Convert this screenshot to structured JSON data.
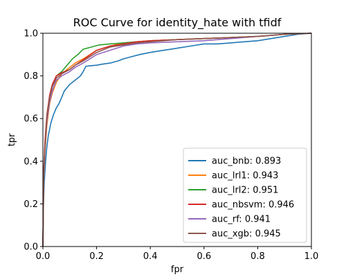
{
  "chart_data": {
    "type": "line",
    "title": "ROC Curve for identity_hate with tfidf",
    "xlabel": "fpr",
    "ylabel": "tpr",
    "xlim": [
      0,
      1
    ],
    "ylim": [
      0,
      1
    ],
    "xticks": [
      "0.0",
      "0.2",
      "0.4",
      "0.6",
      "0.8",
      "1.0"
    ],
    "yticks": [
      "0.0",
      "0.2",
      "0.4",
      "0.6",
      "0.8",
      "1.0"
    ],
    "grid": false,
    "legend_position": "lower-right",
    "series": [
      {
        "name": "auc_bnb: 0.893",
        "color": "#1f77b4",
        "x": [
          0,
          0.002,
          0.005,
          0.01,
          0.015,
          0.02,
          0.03,
          0.04,
          0.05,
          0.06,
          0.07,
          0.08,
          0.1,
          0.12,
          0.14,
          0.15,
          0.16,
          0.18,
          0.2,
          0.22,
          0.25,
          0.28,
          0.3,
          0.33,
          0.36,
          0.4,
          0.45,
          0.5,
          0.55,
          0.6,
          0.65,
          0.7,
          0.75,
          0.8,
          0.85,
          0.9,
          0.95,
          1.0
        ],
        "y": [
          0,
          0.19,
          0.3,
          0.4,
          0.47,
          0.52,
          0.58,
          0.62,
          0.65,
          0.67,
          0.7,
          0.73,
          0.76,
          0.78,
          0.8,
          0.82,
          0.845,
          0.848,
          0.85,
          0.855,
          0.86,
          0.87,
          0.88,
          0.89,
          0.9,
          0.91,
          0.92,
          0.93,
          0.94,
          0.95,
          0.95,
          0.955,
          0.96,
          0.965,
          0.975,
          0.985,
          0.995,
          1.0
        ]
      },
      {
        "name": "auc_lrl1: 0.943",
        "color": "#ff7f0e",
        "x": [
          0,
          0.003,
          0.008,
          0.015,
          0.025,
          0.035,
          0.05,
          0.07,
          0.1,
          0.12,
          0.15,
          0.2,
          0.25,
          0.3,
          0.35,
          0.4,
          0.5,
          0.6,
          0.7,
          0.8,
          0.9,
          1.0
        ],
        "y": [
          0,
          0.32,
          0.45,
          0.57,
          0.67,
          0.72,
          0.77,
          0.81,
          0.84,
          0.86,
          0.88,
          0.92,
          0.94,
          0.955,
          0.96,
          0.965,
          0.97,
          0.975,
          0.98,
          0.985,
          0.995,
          1.0
        ]
      },
      {
        "name": "auc_lrl2: 0.951",
        "color": "#2ca02c",
        "x": [
          0,
          0.003,
          0.008,
          0.015,
          0.025,
          0.035,
          0.05,
          0.07,
          0.09,
          0.11,
          0.13,
          0.15,
          0.18,
          0.21,
          0.25,
          0.3,
          0.35,
          0.4,
          0.5,
          0.6,
          0.7,
          0.8,
          0.9,
          1.0
        ],
        "y": [
          0,
          0.35,
          0.48,
          0.6,
          0.7,
          0.75,
          0.8,
          0.82,
          0.85,
          0.88,
          0.9,
          0.925,
          0.935,
          0.945,
          0.95,
          0.955,
          0.96,
          0.965,
          0.97,
          0.975,
          0.98,
          0.985,
          0.995,
          1.0
        ]
      },
      {
        "name": "auc_nbsvm: 0.946",
        "color": "#d62728",
        "x": [
          0,
          0.003,
          0.008,
          0.015,
          0.025,
          0.035,
          0.05,
          0.07,
          0.1,
          0.12,
          0.15,
          0.2,
          0.25,
          0.3,
          0.35,
          0.4,
          0.5,
          0.6,
          0.7,
          0.8,
          0.9,
          1.0
        ],
        "y": [
          0,
          0.36,
          0.5,
          0.62,
          0.71,
          0.76,
          0.8,
          0.815,
          0.83,
          0.85,
          0.875,
          0.92,
          0.94,
          0.95,
          0.96,
          0.965,
          0.97,
          0.975,
          0.98,
          0.985,
          0.995,
          1.0
        ]
      },
      {
        "name": "auc_rf: 0.941",
        "color": "#9467bd",
        "x": [
          0,
          0.003,
          0.008,
          0.015,
          0.025,
          0.035,
          0.05,
          0.07,
          0.1,
          0.12,
          0.15,
          0.2,
          0.25,
          0.3,
          0.35,
          0.4,
          0.5,
          0.6,
          0.7,
          0.8,
          0.9,
          1.0
        ],
        "y": [
          0,
          0.33,
          0.47,
          0.59,
          0.68,
          0.73,
          0.78,
          0.8,
          0.82,
          0.84,
          0.86,
          0.9,
          0.92,
          0.94,
          0.95,
          0.955,
          0.96,
          0.965,
          0.975,
          0.985,
          0.995,
          1.0
        ]
      },
      {
        "name": "auc_xgb: 0.945",
        "color": "#8c564b",
        "x": [
          0,
          0.003,
          0.008,
          0.015,
          0.025,
          0.035,
          0.05,
          0.07,
          0.1,
          0.12,
          0.15,
          0.2,
          0.25,
          0.3,
          0.35,
          0.4,
          0.5,
          0.6,
          0.7,
          0.8,
          0.9,
          1.0
        ],
        "y": [
          0,
          0.34,
          0.48,
          0.61,
          0.7,
          0.75,
          0.79,
          0.81,
          0.83,
          0.85,
          0.87,
          0.91,
          0.935,
          0.945,
          0.955,
          0.96,
          0.97,
          0.975,
          0.98,
          0.985,
          0.995,
          1.0
        ]
      }
    ]
  }
}
